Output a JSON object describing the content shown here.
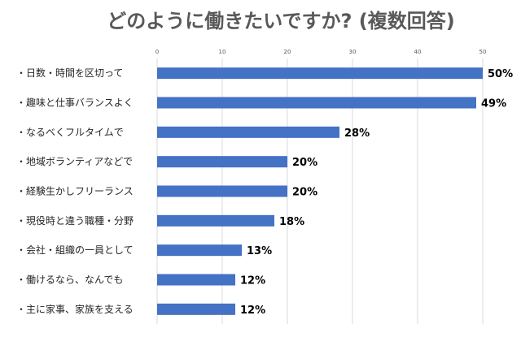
{
  "chart_data": {
    "type": "bar",
    "orientation": "horizontal",
    "title": "どのように働きたいですか? (複数回答)",
    "categories": [
      "・日数・時間を区切って",
      "・趣味と仕事バランスよく",
      "・なるべくフルタイムで",
      "・地域ボランティアなどで",
      "・経験生かしフリーランス",
      "・現役時と違う職種・分野",
      "・会社・組織の一員として",
      "・働けるなら、なんでも",
      "・主に家事、家族を支える"
    ],
    "values": [
      50,
      49,
      28,
      20,
      20,
      18,
      13,
      12,
      12
    ],
    "value_labels": [
      "50%",
      "49%",
      "28%",
      "20%",
      "20%",
      "18%",
      "13%",
      "12%",
      "12%"
    ],
    "xlim": [
      0,
      50
    ],
    "xticks": [
      "0",
      "10",
      "20",
      "30",
      "40",
      "50"
    ],
    "bar_color": "#4472c4",
    "grid": true
  }
}
